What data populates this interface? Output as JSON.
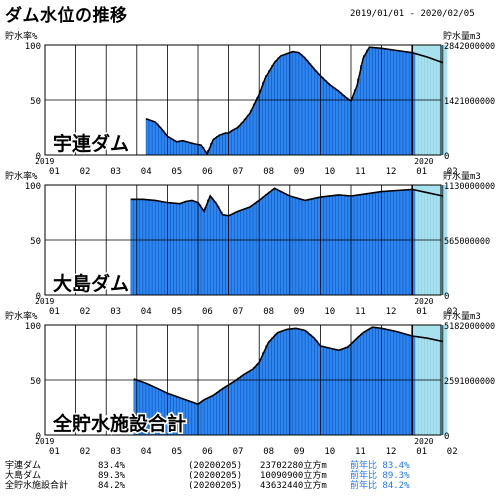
{
  "header": {
    "title": "ダム水位の推移",
    "date_range": "2019/01/01 - 2020/02/05"
  },
  "colors": {
    "bar": "#2c86f2",
    "bar_dark": "#0a3d9a",
    "recent_fill": "#a8e1ee",
    "prev_year_text": "#1e78ff"
  },
  "chart_data": [
    {
      "type": "area",
      "name": "宇連ダム",
      "ylabel_left": "貯水率%",
      "ylabel_right": "貯水量m3",
      "y_ticks_left": [
        "100",
        "50",
        "0"
      ],
      "y_ticks_right": [
        "2842000000",
        "1421000000",
        "0"
      ],
      "x_year_start": "2019",
      "x_year_end": "2020",
      "x_month_labels": [
        "01",
        "02",
        "03",
        "04",
        "05",
        "06",
        "07",
        "08",
        "09",
        "10",
        "11",
        "12",
        "01",
        "02"
      ],
      "ylim": [
        0,
        100
      ],
      "series_x": [
        0,
        1,
        2,
        2.4,
        2.5,
        2.9,
        3.0,
        3.1,
        3.3,
        3.6,
        3.8,
        4.0,
        4.3,
        4.5,
        4.9,
        5.1,
        5.3,
        5.5,
        5.7,
        5.9,
        6.0,
        6.1,
        6.3,
        6.5,
        6.7,
        7.0,
        7.2,
        7.5,
        7.7,
        7.9,
        8.1,
        8.3,
        8.5,
        8.8,
        9.0,
        9.3,
        9.6,
        9.8,
        10.0,
        10.2,
        10.4,
        10.6,
        11.0,
        11.5,
        12.0,
        12.5,
        13.0
      ],
      "series_y": [
        null,
        null,
        null,
        null,
        null,
        null,
        null,
        null,
        33,
        30,
        24,
        17,
        12,
        13,
        10,
        9,
        1,
        14,
        18,
        20,
        20,
        22,
        25,
        31,
        38,
        55,
        70,
        84,
        90,
        92,
        94,
        93,
        88,
        78,
        72,
        64,
        58,
        53,
        49,
        63,
        88,
        98,
        97,
        95,
        93,
        89,
        84
      ],
      "recent_start_x": 12,
      "recent_end_x": 13.15
    },
    {
      "type": "area",
      "name": "大島ダム",
      "ylabel_left": "貯水率%",
      "ylabel_right": "貯水量m3",
      "y_ticks_left": [
        "100",
        "50",
        "0"
      ],
      "y_ticks_right": [
        "1130000000",
        "565000000",
        "0"
      ],
      "x_year_start": "2019",
      "x_year_end": "2020",
      "x_month_labels": [
        "01",
        "02",
        "03",
        "04",
        "05",
        "06",
        "07",
        "08",
        "09",
        "10",
        "11",
        "12",
        "01",
        "02"
      ],
      "ylim": [
        0,
        100
      ],
      "series_x": [
        0,
        1,
        2,
        2.7,
        2.8,
        3.2,
        3.6,
        4.0,
        4.4,
        4.6,
        4.8,
        5.0,
        5.2,
        5.4,
        5.6,
        5.8,
        6.0,
        6.3,
        6.7,
        7.0,
        7.5,
        8.0,
        8.5,
        9.0,
        9.6,
        10.0,
        10.5,
        11.0,
        11.5,
        12.0,
        12.5,
        13.0
      ],
      "series_y": [
        null,
        null,
        null,
        null,
        87,
        87,
        86,
        84,
        83,
        85,
        86,
        84,
        76,
        90,
        83,
        73,
        72,
        76,
        80,
        86,
        97,
        90,
        86,
        89,
        91,
        90,
        92,
        94,
        95,
        96,
        93,
        90
      ],
      "recent_start_x": 12,
      "recent_end_x": 13.15
    },
    {
      "type": "area",
      "name": "全貯水施設合計",
      "ylabel_left": "貯水率%",
      "ylabel_right": "貯水量m3",
      "y_ticks_left": [
        "100",
        "50",
        "0"
      ],
      "y_ticks_right": [
        "5182000000",
        "2591000000",
        "0"
      ],
      "x_year_start": "2019",
      "x_year_end": "2020",
      "x_month_labels": [
        "01",
        "02",
        "03",
        "04",
        "05",
        "06",
        "07",
        "08",
        "09",
        "10",
        "11",
        "12",
        "01",
        "02"
      ],
      "ylim": [
        0,
        100
      ],
      "series_x": [
        0,
        1,
        2,
        2.8,
        2.9,
        3.3,
        3.7,
        4.0,
        4.4,
        4.8,
        5.0,
        5.2,
        5.5,
        5.8,
        6.2,
        6.5,
        6.8,
        7.0,
        7.3,
        7.6,
        7.9,
        8.2,
        8.5,
        8.8,
        9.0,
        9.3,
        9.6,
        9.9,
        10.2,
        10.4,
        10.7,
        11.0,
        11.5,
        12.0,
        12.5,
        13.0
      ],
      "series_y": [
        null,
        null,
        null,
        null,
        51,
        47,
        42,
        38,
        34,
        30,
        28,
        32,
        36,
        42,
        49,
        55,
        60,
        66,
        84,
        93,
        96,
        97,
        95,
        88,
        81,
        79,
        77,
        80,
        88,
        93,
        98,
        97,
        94,
        90,
        88,
        85
      ],
      "recent_start_x": 12,
      "recent_end_x": 13.15
    }
  ],
  "summary": [
    {
      "name": "宇連ダム",
      "pct": "83.4%",
      "date": "(20200205)",
      "volume": "23702280立方m",
      "prev": "前年比 83.4%"
    },
    {
      "name": "大島ダム",
      "pct": "89.3%",
      "date": "(20200205)",
      "volume": "10090900立方m",
      "prev": "前年比 89.3%"
    },
    {
      "name": "全貯水施設合計",
      "pct": "84.2%",
      "date": "(20200205)",
      "volume": "43632440立方m",
      "prev": "前年比 84.2%"
    }
  ]
}
